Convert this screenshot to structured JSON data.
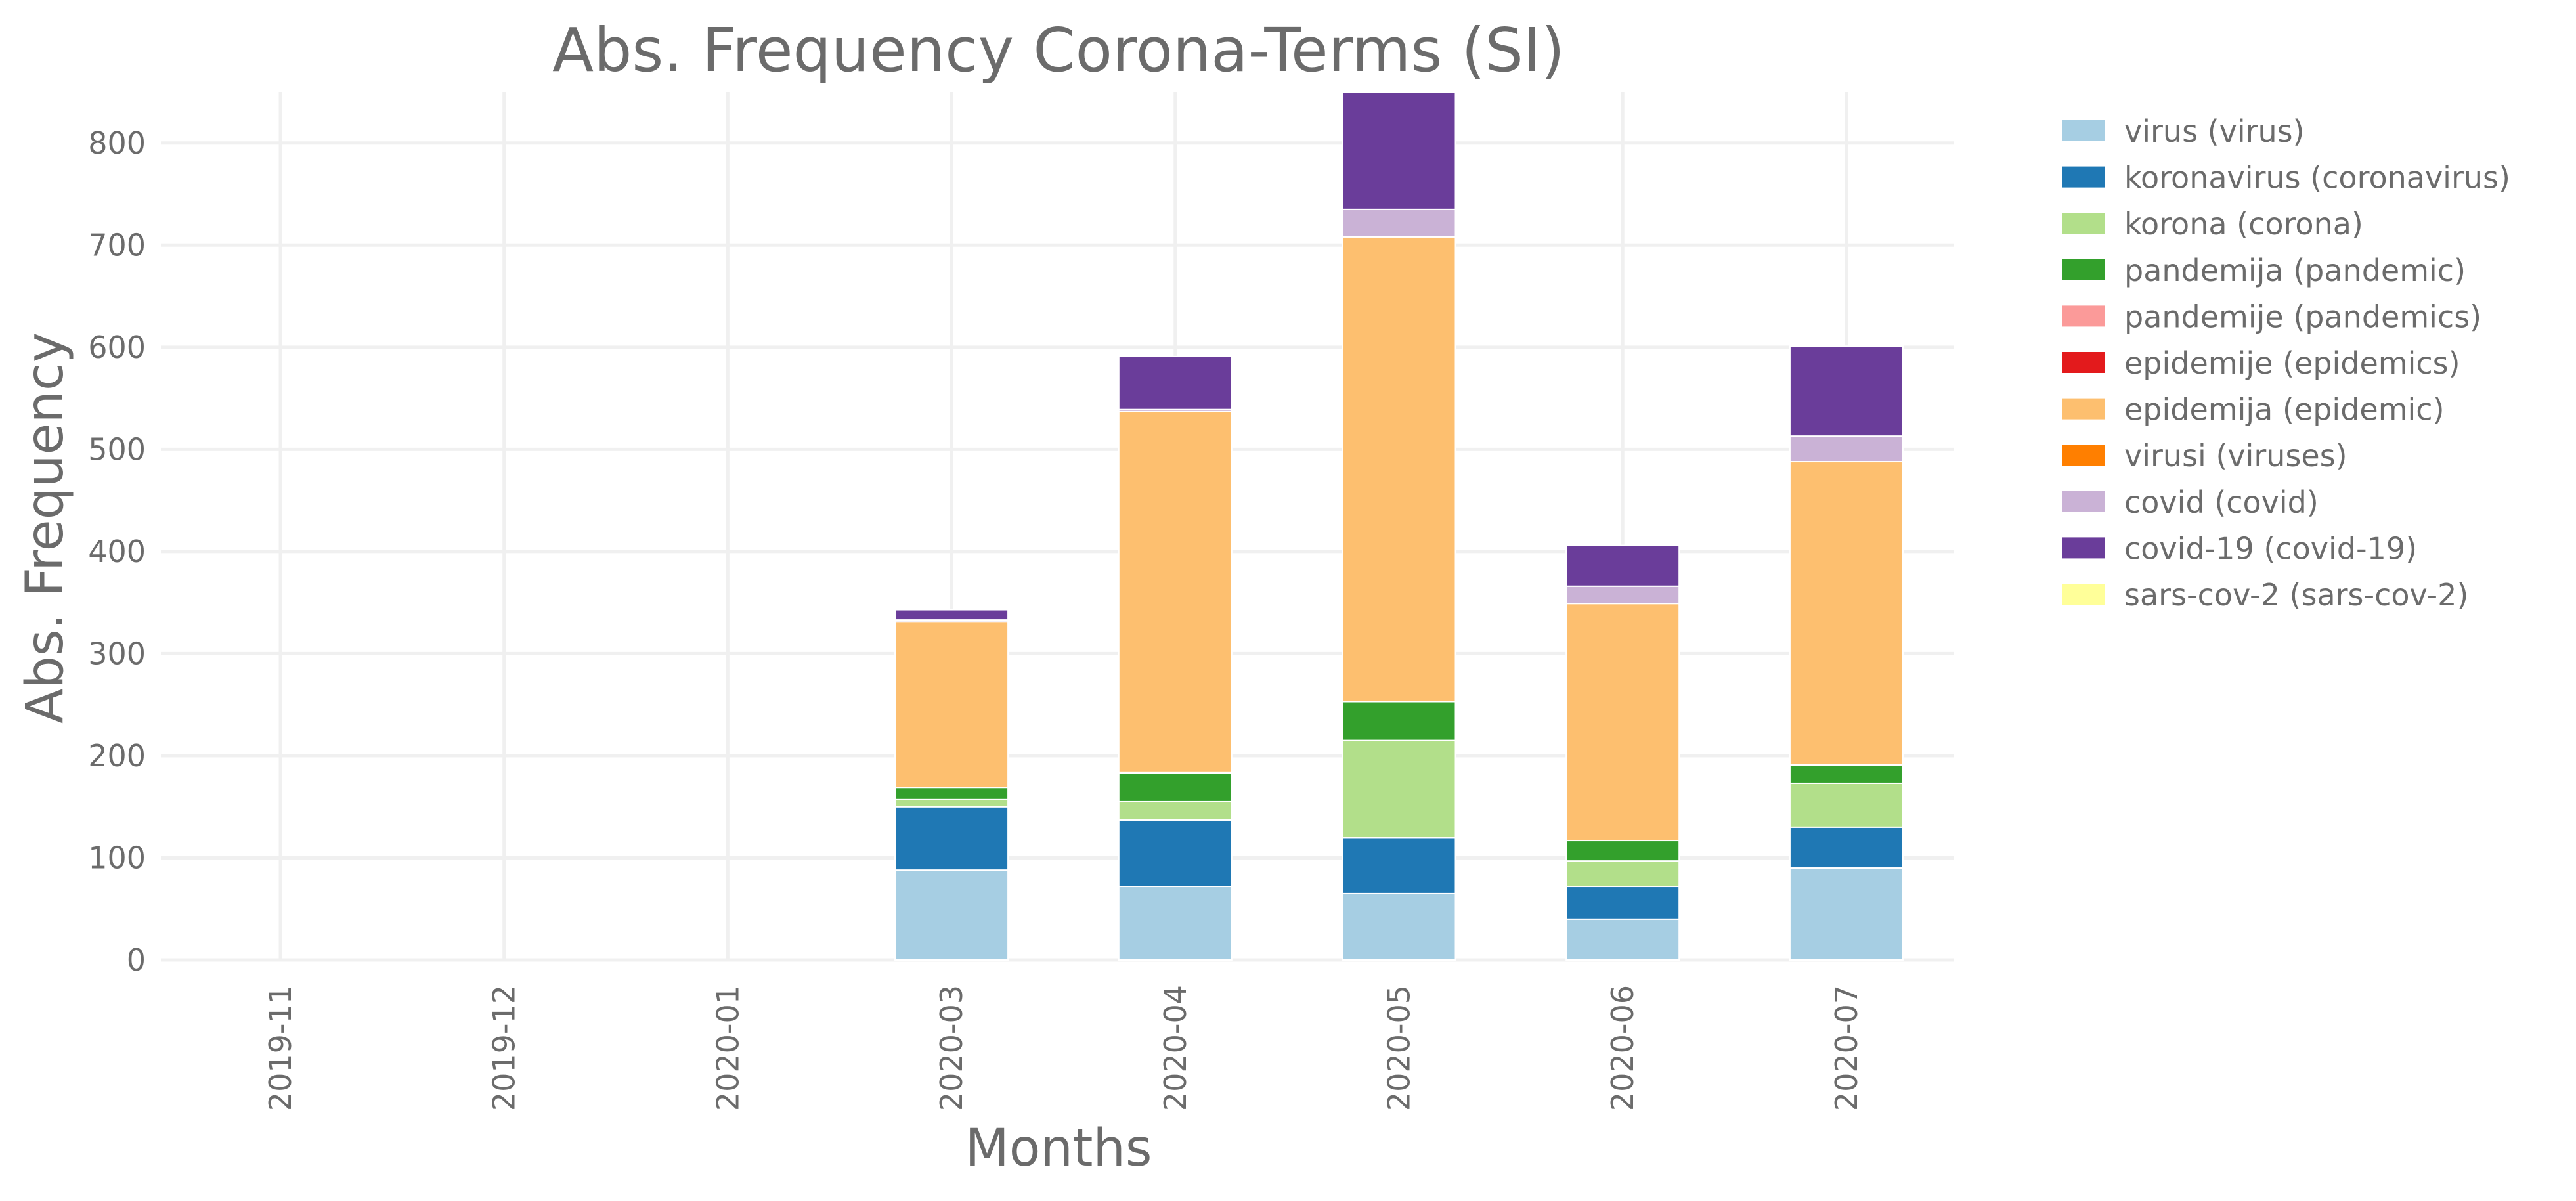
{
  "chart_data": {
    "type": "bar",
    "stacked": true,
    "title": "Abs. Frequency Corona-Terms (SI)",
    "xlabel": "Months",
    "ylabel": "Abs. Frequency",
    "ylim": [
      0,
      850
    ],
    "yticks": [
      0,
      100,
      200,
      300,
      400,
      500,
      600,
      700,
      800
    ],
    "categories": [
      "2019-11",
      "2019-12",
      "2020-01",
      "2020-03",
      "2020-04",
      "2020-05",
      "2020-06",
      "2020-07"
    ],
    "grid": true,
    "legend_position": "right",
    "series": [
      {
        "name": "virus (virus)",
        "color": "#a6cee3",
        "values": [
          0,
          0,
          0,
          88,
          72,
          65,
          40,
          90
        ]
      },
      {
        "name": "koronavirus (coronavirus)",
        "color": "#1f78b4",
        "values": [
          0,
          0,
          0,
          62,
          65,
          55,
          32,
          40
        ]
      },
      {
        "name": "korona (corona)",
        "color": "#b2df8a",
        "values": [
          0,
          0,
          0,
          7,
          18,
          95,
          25,
          43
        ]
      },
      {
        "name": "pandemija (pandemic)",
        "color": "#33a02c",
        "values": [
          0,
          0,
          0,
          12,
          28,
          38,
          20,
          18
        ]
      },
      {
        "name": "pandemije (pandemics)",
        "color": "#fb9a99",
        "values": [
          0,
          0,
          0,
          0,
          1,
          0,
          0,
          0
        ]
      },
      {
        "name": "epidemije (epidemics)",
        "color": "#e31a1c",
        "values": [
          0,
          0,
          0,
          0,
          0,
          0,
          0,
          0
        ]
      },
      {
        "name": "epidemija (epidemic)",
        "color": "#fdbf6f",
        "values": [
          0,
          0,
          0,
          162,
          353,
          455,
          232,
          297
        ]
      },
      {
        "name": "virusi (viruses)",
        "color": "#ff7f00",
        "values": [
          0,
          0,
          0,
          0,
          0,
          0,
          0,
          0
        ]
      },
      {
        "name": "covid (covid)",
        "color": "#cab2d6",
        "values": [
          0,
          0,
          0,
          2,
          2,
          27,
          17,
          25
        ]
      },
      {
        "name": "covid-19 (covid-19)",
        "color": "#6a3d9a",
        "values": [
          0,
          0,
          0,
          10,
          52,
          115,
          40,
          88
        ]
      },
      {
        "name": "sars-cov-2 (sars-cov-2)",
        "color": "#ffff99",
        "values": [
          0,
          0,
          0,
          0,
          0,
          0,
          0,
          0
        ]
      }
    ]
  }
}
